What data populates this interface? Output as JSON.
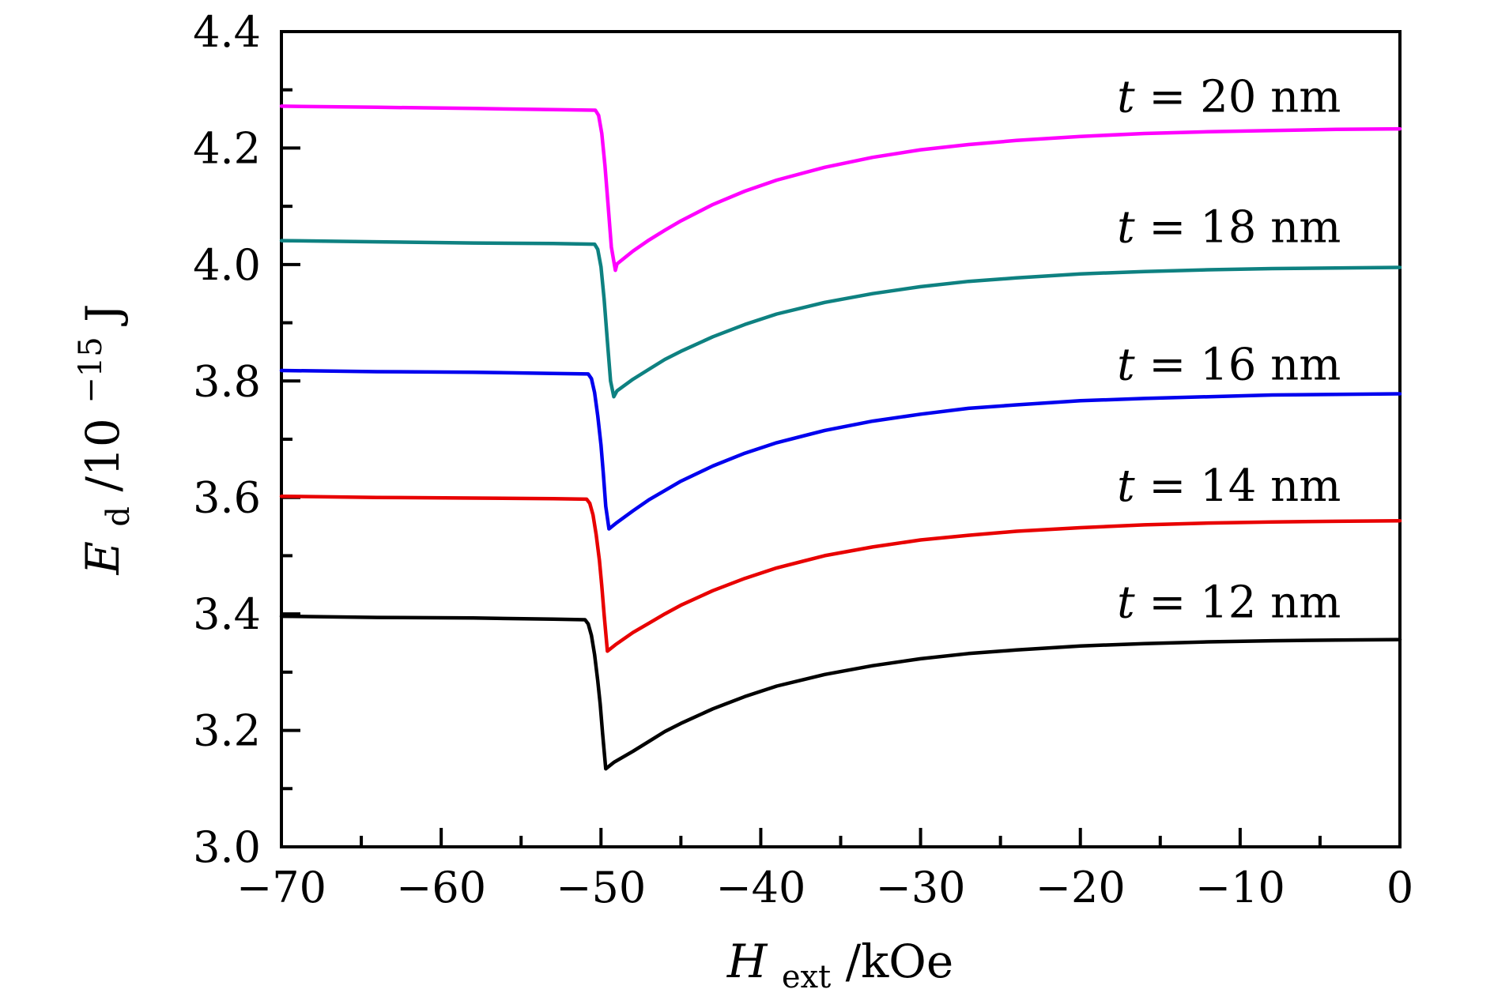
{
  "figure": {
    "background": "#ffffff"
  },
  "chart_data": {
    "type": "line",
    "title": "",
    "grid": false,
    "legend_position": "right-inside-stacked",
    "x_axis": {
      "label_var": "H",
      "label_sub": "ext",
      "label_rest": "/kOe",
      "range": [
        -70,
        0
      ],
      "major_ticks": [
        -70,
        -60,
        -50,
        -40,
        -30,
        -20,
        -10,
        0
      ],
      "tick_labels": [
        "−70",
        "−60",
        "−50",
        "−40",
        "−30",
        "−20",
        "−10",
        "0"
      ],
      "minor_ticks": [
        -65,
        -55,
        -45,
        -35,
        -25,
        -15,
        -5
      ]
    },
    "y_axis": {
      "label_var": "E",
      "label_sub": "d",
      "label_rest": "/10",
      "label_sup": "−15",
      "label_unit": " J",
      "range": [
        3.0,
        4.4
      ],
      "major_ticks": [
        3.0,
        3.2,
        3.4,
        3.6,
        3.8,
        4.0,
        4.2,
        4.4
      ],
      "tick_labels": [
        "3.0",
        "3.2",
        "3.4",
        "3.6",
        "3.8",
        "4.0",
        "4.2",
        "4.4"
      ],
      "minor_ticks": [
        3.1,
        3.3,
        3.5,
        3.7,
        3.9,
        4.1,
        4.3
      ]
    },
    "series": [
      {
        "name": "t-20nm",
        "label": "t = 20 nm",
        "color": "#ff00ff",
        "label_pos": {
          "x": -10.7,
          "y": 4.288
        },
        "points": [
          [
            -70,
            4.272
          ],
          [
            -64,
            4.27
          ],
          [
            -58,
            4.268
          ],
          [
            -53,
            4.266
          ],
          [
            -50.35,
            4.265
          ],
          [
            -50.15,
            4.256
          ],
          [
            -49.95,
            4.225
          ],
          [
            -49.75,
            4.17
          ],
          [
            -49.55,
            4.1
          ],
          [
            -49.35,
            4.03
          ],
          [
            -49.1,
            3.99
          ],
          [
            -49,
            4.001
          ],
          [
            -48,
            4.023
          ],
          [
            -47,
            4.042
          ],
          [
            -46,
            4.059
          ],
          [
            -45,
            4.075
          ],
          [
            -43,
            4.103
          ],
          [
            -41,
            4.126
          ],
          [
            -39,
            4.145
          ],
          [
            -36,
            4.167
          ],
          [
            -33,
            4.184
          ],
          [
            -30,
            4.197
          ],
          [
            -27,
            4.206
          ],
          [
            -24,
            4.213
          ],
          [
            -20,
            4.22
          ],
          [
            -16,
            4.225
          ],
          [
            -12,
            4.228
          ],
          [
            -8,
            4.23
          ],
          [
            -4,
            4.232
          ],
          [
            0,
            4.233
          ]
        ]
      },
      {
        "name": "t-18nm",
        "label": "t = 18 nm",
        "color": "#0e8181",
        "label_pos": {
          "x": -10.7,
          "y": 4.064
        },
        "points": [
          [
            -70,
            4.041
          ],
          [
            -64,
            4.039
          ],
          [
            -58,
            4.037
          ],
          [
            -53,
            4.036
          ],
          [
            -50.4,
            4.035
          ],
          [
            -50.2,
            4.026
          ],
          [
            -50.0,
            3.996
          ],
          [
            -49.8,
            3.94
          ],
          [
            -49.6,
            3.868
          ],
          [
            -49.4,
            3.8
          ],
          [
            -49.2,
            3.773
          ],
          [
            -49,
            3.783
          ],
          [
            -48,
            3.803
          ],
          [
            -47,
            3.82
          ],
          [
            -46,
            3.837
          ],
          [
            -45,
            3.851
          ],
          [
            -43,
            3.876
          ],
          [
            -41,
            3.897
          ],
          [
            -39,
            3.915
          ],
          [
            -36,
            3.935
          ],
          [
            -33,
            3.95
          ],
          [
            -30,
            3.962
          ],
          [
            -27,
            3.971
          ],
          [
            -24,
            3.977
          ],
          [
            -20,
            3.984
          ],
          [
            -16,
            3.988
          ],
          [
            -12,
            3.991
          ],
          [
            -8,
            3.993
          ],
          [
            -4,
            3.994
          ],
          [
            0,
            3.995
          ]
        ]
      },
      {
        "name": "t-16nm",
        "label": "t = 16 nm",
        "color": "#0000ee",
        "label_pos": {
          "x": -10.7,
          "y": 3.828
        },
        "points": [
          [
            -70,
            3.818
          ],
          [
            -64,
            3.816
          ],
          [
            -58,
            3.815
          ],
          [
            -53,
            3.813
          ],
          [
            -50.8,
            3.812
          ],
          [
            -50.6,
            3.804
          ],
          [
            -50.4,
            3.78
          ],
          [
            -50.2,
            3.74
          ],
          [
            -50.0,
            3.69
          ],
          [
            -49.85,
            3.64
          ],
          [
            -49.7,
            3.585
          ],
          [
            -49.5,
            3.546
          ],
          [
            -49,
            3.557
          ],
          [
            -48,
            3.577
          ],
          [
            -47,
            3.596
          ],
          [
            -46,
            3.612
          ],
          [
            -45,
            3.628
          ],
          [
            -43,
            3.654
          ],
          [
            -41,
            3.676
          ],
          [
            -39,
            3.694
          ],
          [
            -36,
            3.715
          ],
          [
            -33,
            3.731
          ],
          [
            -30,
            3.743
          ],
          [
            -27,
            3.753
          ],
          [
            -24,
            3.759
          ],
          [
            -20,
            3.766
          ],
          [
            -16,
            3.77
          ],
          [
            -12,
            3.773
          ],
          [
            -8,
            3.776
          ],
          [
            -4,
            3.777
          ],
          [
            0,
            3.778
          ]
        ]
      },
      {
        "name": "t-14nm",
        "label": "t = 14 nm",
        "color": "#e80000",
        "label_pos": {
          "x": -10.7,
          "y": 3.62
        },
        "points": [
          [
            -70,
            3.602
          ],
          [
            -64,
            3.6
          ],
          [
            -58,
            3.599
          ],
          [
            -53,
            3.598
          ],
          [
            -50.9,
            3.597
          ],
          [
            -50.7,
            3.59
          ],
          [
            -50.5,
            3.57
          ],
          [
            -50.3,
            3.536
          ],
          [
            -50.1,
            3.492
          ],
          [
            -49.95,
            3.448
          ],
          [
            -49.8,
            3.398
          ],
          [
            -49.6,
            3.336
          ],
          [
            -49.1,
            3.347
          ],
          [
            -48,
            3.368
          ],
          [
            -47,
            3.384
          ],
          [
            -46,
            3.4
          ],
          [
            -45,
            3.415
          ],
          [
            -43,
            3.44
          ],
          [
            -41,
            3.461
          ],
          [
            -39,
            3.479
          ],
          [
            -36,
            3.5
          ],
          [
            -33,
            3.515
          ],
          [
            -30,
            3.527
          ],
          [
            -27,
            3.535
          ],
          [
            -24,
            3.542
          ],
          [
            -20,
            3.548
          ],
          [
            -16,
            3.553
          ],
          [
            -12,
            3.556
          ],
          [
            -8,
            3.558
          ],
          [
            -4,
            3.559
          ],
          [
            0,
            3.56
          ]
        ]
      },
      {
        "name": "t-12nm",
        "label": "t = 12 nm",
        "color": "#000000",
        "label_pos": {
          "x": -10.7,
          "y": 3.42
        },
        "points": [
          [
            -70,
            3.396
          ],
          [
            -64,
            3.394
          ],
          [
            -58,
            3.393
          ],
          [
            -53,
            3.391
          ],
          [
            -51,
            3.39
          ],
          [
            -50.8,
            3.383
          ],
          [
            -50.6,
            3.363
          ],
          [
            -50.4,
            3.33
          ],
          [
            -50.2,
            3.285
          ],
          [
            -50.05,
            3.245
          ],
          [
            -49.9,
            3.195
          ],
          [
            -49.7,
            3.134
          ],
          [
            -49.2,
            3.145
          ],
          [
            -48,
            3.164
          ],
          [
            -47,
            3.181
          ],
          [
            -46,
            3.198
          ],
          [
            -45,
            3.212
          ],
          [
            -43,
            3.237
          ],
          [
            -41,
            3.258
          ],
          [
            -39,
            3.276
          ],
          [
            -36,
            3.296
          ],
          [
            -33,
            3.311
          ],
          [
            -30,
            3.323
          ],
          [
            -27,
            3.332
          ],
          [
            -24,
            3.338
          ],
          [
            -20,
            3.345
          ],
          [
            -16,
            3.349
          ],
          [
            -12,
            3.352
          ],
          [
            -8,
            3.354
          ],
          [
            -4,
            3.355
          ],
          [
            0,
            3.356
          ]
        ]
      }
    ]
  }
}
